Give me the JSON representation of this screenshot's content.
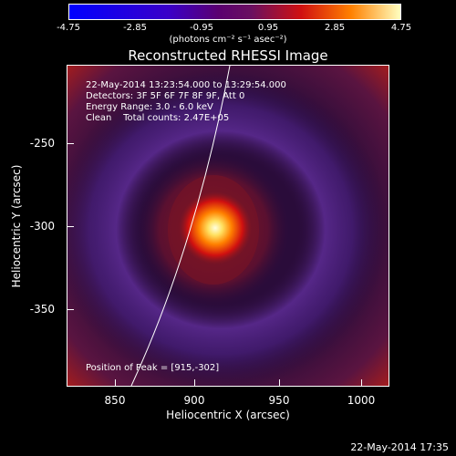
{
  "colorbar": {
    "tick_labels": [
      "-4.75",
      "-2.85",
      "-0.95",
      "0.95",
      "2.85",
      "4.75"
    ],
    "unit_label": "(photons cm⁻² s⁻¹ asec⁻²)"
  },
  "title": "Reconstructed RHESSI Image",
  "annotations": {
    "time_range": "22-May-2014 13:23:54.000 to 13:29:54.000",
    "detectors": "Detectors: 3F 5F 6F 7F 8F 9F, Att 0",
    "energy": "Energy Range: 3.0 - 6.0 keV",
    "clean": "Clean    Total counts: 2.47E+05",
    "peak": "Position of Peak = [915,-302]"
  },
  "axes": {
    "xlabel": "Heliocentric X (arcsec)",
    "ylabel": "Heliocentric Y (arcsec)",
    "x_ticks": [
      "850",
      "900",
      "950",
      "1000"
    ],
    "y_ticks": [
      "-250",
      "-300",
      "-350"
    ]
  },
  "footer_date": "22-May-2014 17:35",
  "colors": {
    "background": "#000000",
    "text": "#ffffff"
  }
}
